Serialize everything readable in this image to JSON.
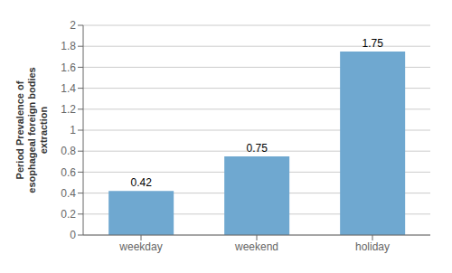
{
  "chart_data": {
    "type": "bar",
    "categories": [
      "weekday",
      "weekend",
      "holiday"
    ],
    "values": [
      0.42,
      0.75,
      1.75
    ],
    "color": "#6fa8d0",
    "ylabel": "Period Prevalence of\nesophageal foreign bodies\nextraction",
    "ylim": [
      0,
      2.0
    ],
    "yticks": [
      0,
      0.2,
      0.4,
      0.6,
      0.8,
      1,
      1.2,
      1.4,
      1.6,
      1.8,
      2
    ],
    "grid": true,
    "data_labels": true
  }
}
